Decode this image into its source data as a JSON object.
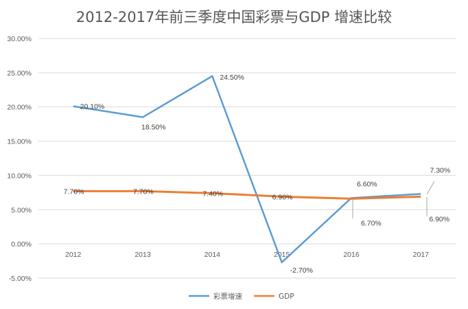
{
  "chart_data": {
    "type": "line",
    "title": "2012-2017年前三季度中国彩票与GDP 增速比较",
    "categories": [
      "2012",
      "2013",
      "2014",
      "2015",
      "2016",
      "2017"
    ],
    "series": [
      {
        "name": "彩票增速",
        "values": [
          20.1,
          18.5,
          24.5,
          -2.7,
          6.7,
          7.3
        ],
        "labels": [
          "20.10%",
          "18.50%",
          "24.50%",
          "-2.70%",
          "6.70%",
          "7.30%"
        ],
        "color": "#5b9bd5"
      },
      {
        "name": "GDP",
        "values": [
          7.7,
          7.7,
          7.4,
          6.9,
          6.6,
          6.9
        ],
        "labels": [
          "7.70%",
          "7.70%",
          "7.40%",
          "6.90%",
          "6.60%",
          "6.90%"
        ],
        "color": "#ed7d31"
      }
    ],
    "ylim": [
      -5,
      30
    ],
    "yticks": [
      "-5.00%",
      "0.00%",
      "5.00%",
      "10.00%",
      "15.00%",
      "20.00%",
      "25.00%",
      "30.00%"
    ],
    "ytick_values": [
      -5,
      0,
      5,
      10,
      15,
      20,
      25,
      30
    ],
    "grid": true,
    "legend_position": "bottom"
  }
}
